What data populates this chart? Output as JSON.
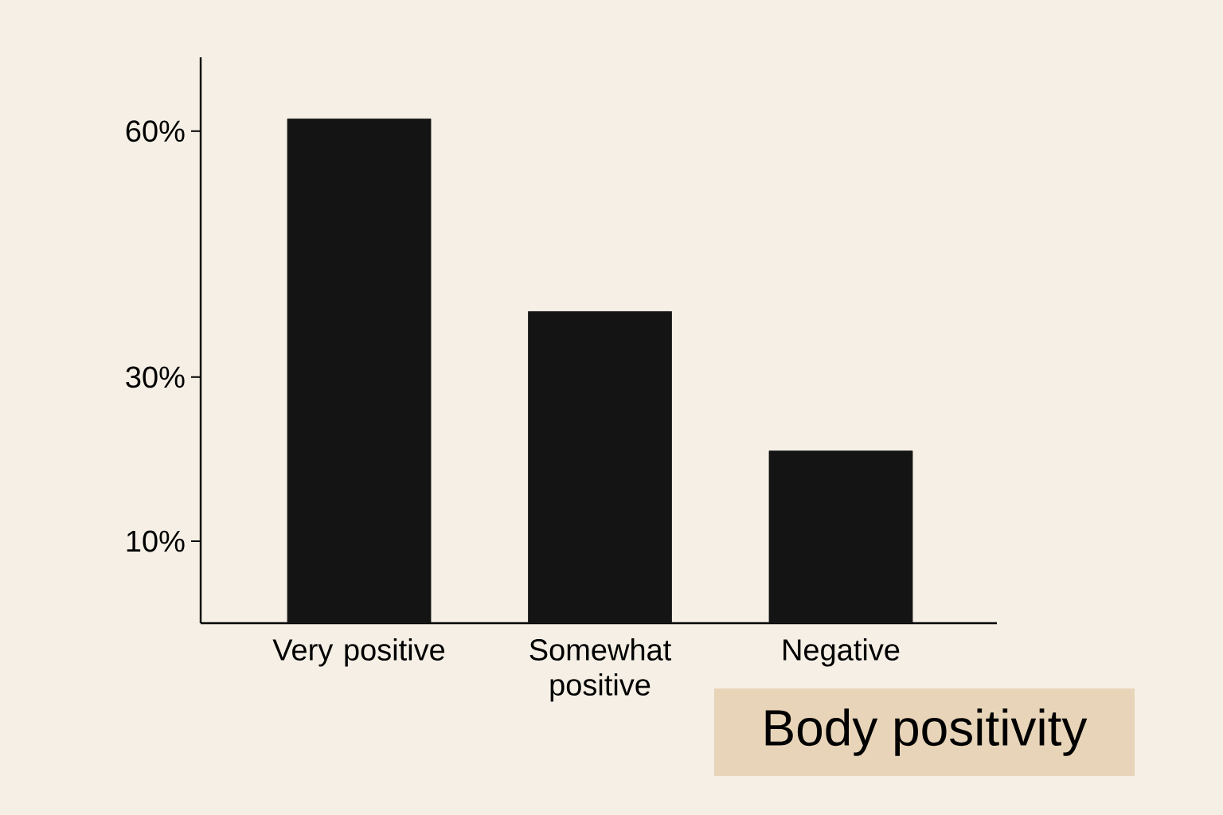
{
  "chart_data": {
    "type": "bar",
    "title": "Body positivity",
    "categories": [
      "Very positive",
      "Somewhat positive",
      "Negative"
    ],
    "values": [
      61.5,
      38,
      21
    ],
    "color": "#141414",
    "ylim": [
      0,
      69
    ],
    "yticks": [
      {
        "value": 10,
        "label": "10%"
      },
      {
        "value": 30,
        "label": "30%"
      },
      {
        "value": 60,
        "label": "60%"
      }
    ],
    "grid": false
  }
}
